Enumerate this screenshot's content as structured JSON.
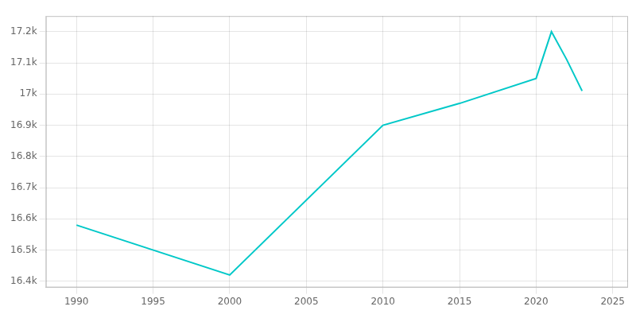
{
  "chart_data": {
    "type": "line",
    "x": [
      1990,
      2000,
      2010,
      2015,
      2020,
      2021,
      2022,
      2023
    ],
    "values": [
      16580,
      16420,
      16900,
      16970,
      17050,
      17200,
      17110,
      17010
    ],
    "color": "#00c8c8",
    "marker": "none",
    "xlim": [
      1988,
      2026
    ],
    "xticks": [
      1990,
      1995,
      2000,
      2005,
      2010,
      2015,
      2020,
      2025
    ],
    "ylim": [
      16380,
      17250
    ],
    "yticks": [
      {
        "value": 16400,
        "label": "16.4k"
      },
      {
        "value": 16500,
        "label": "16.5k"
      },
      {
        "value": 16600,
        "label": "16.6k"
      },
      {
        "value": 16700,
        "label": "16.7k"
      },
      {
        "value": 16800,
        "label": "16.8k"
      },
      {
        "value": 16900,
        "label": "16.9k"
      },
      {
        "value": 17000,
        "label": "17k"
      },
      {
        "value": 17100,
        "label": "17.1k"
      },
      {
        "value": 17200,
        "label": "17.2k"
      }
    ],
    "grid": true
  }
}
